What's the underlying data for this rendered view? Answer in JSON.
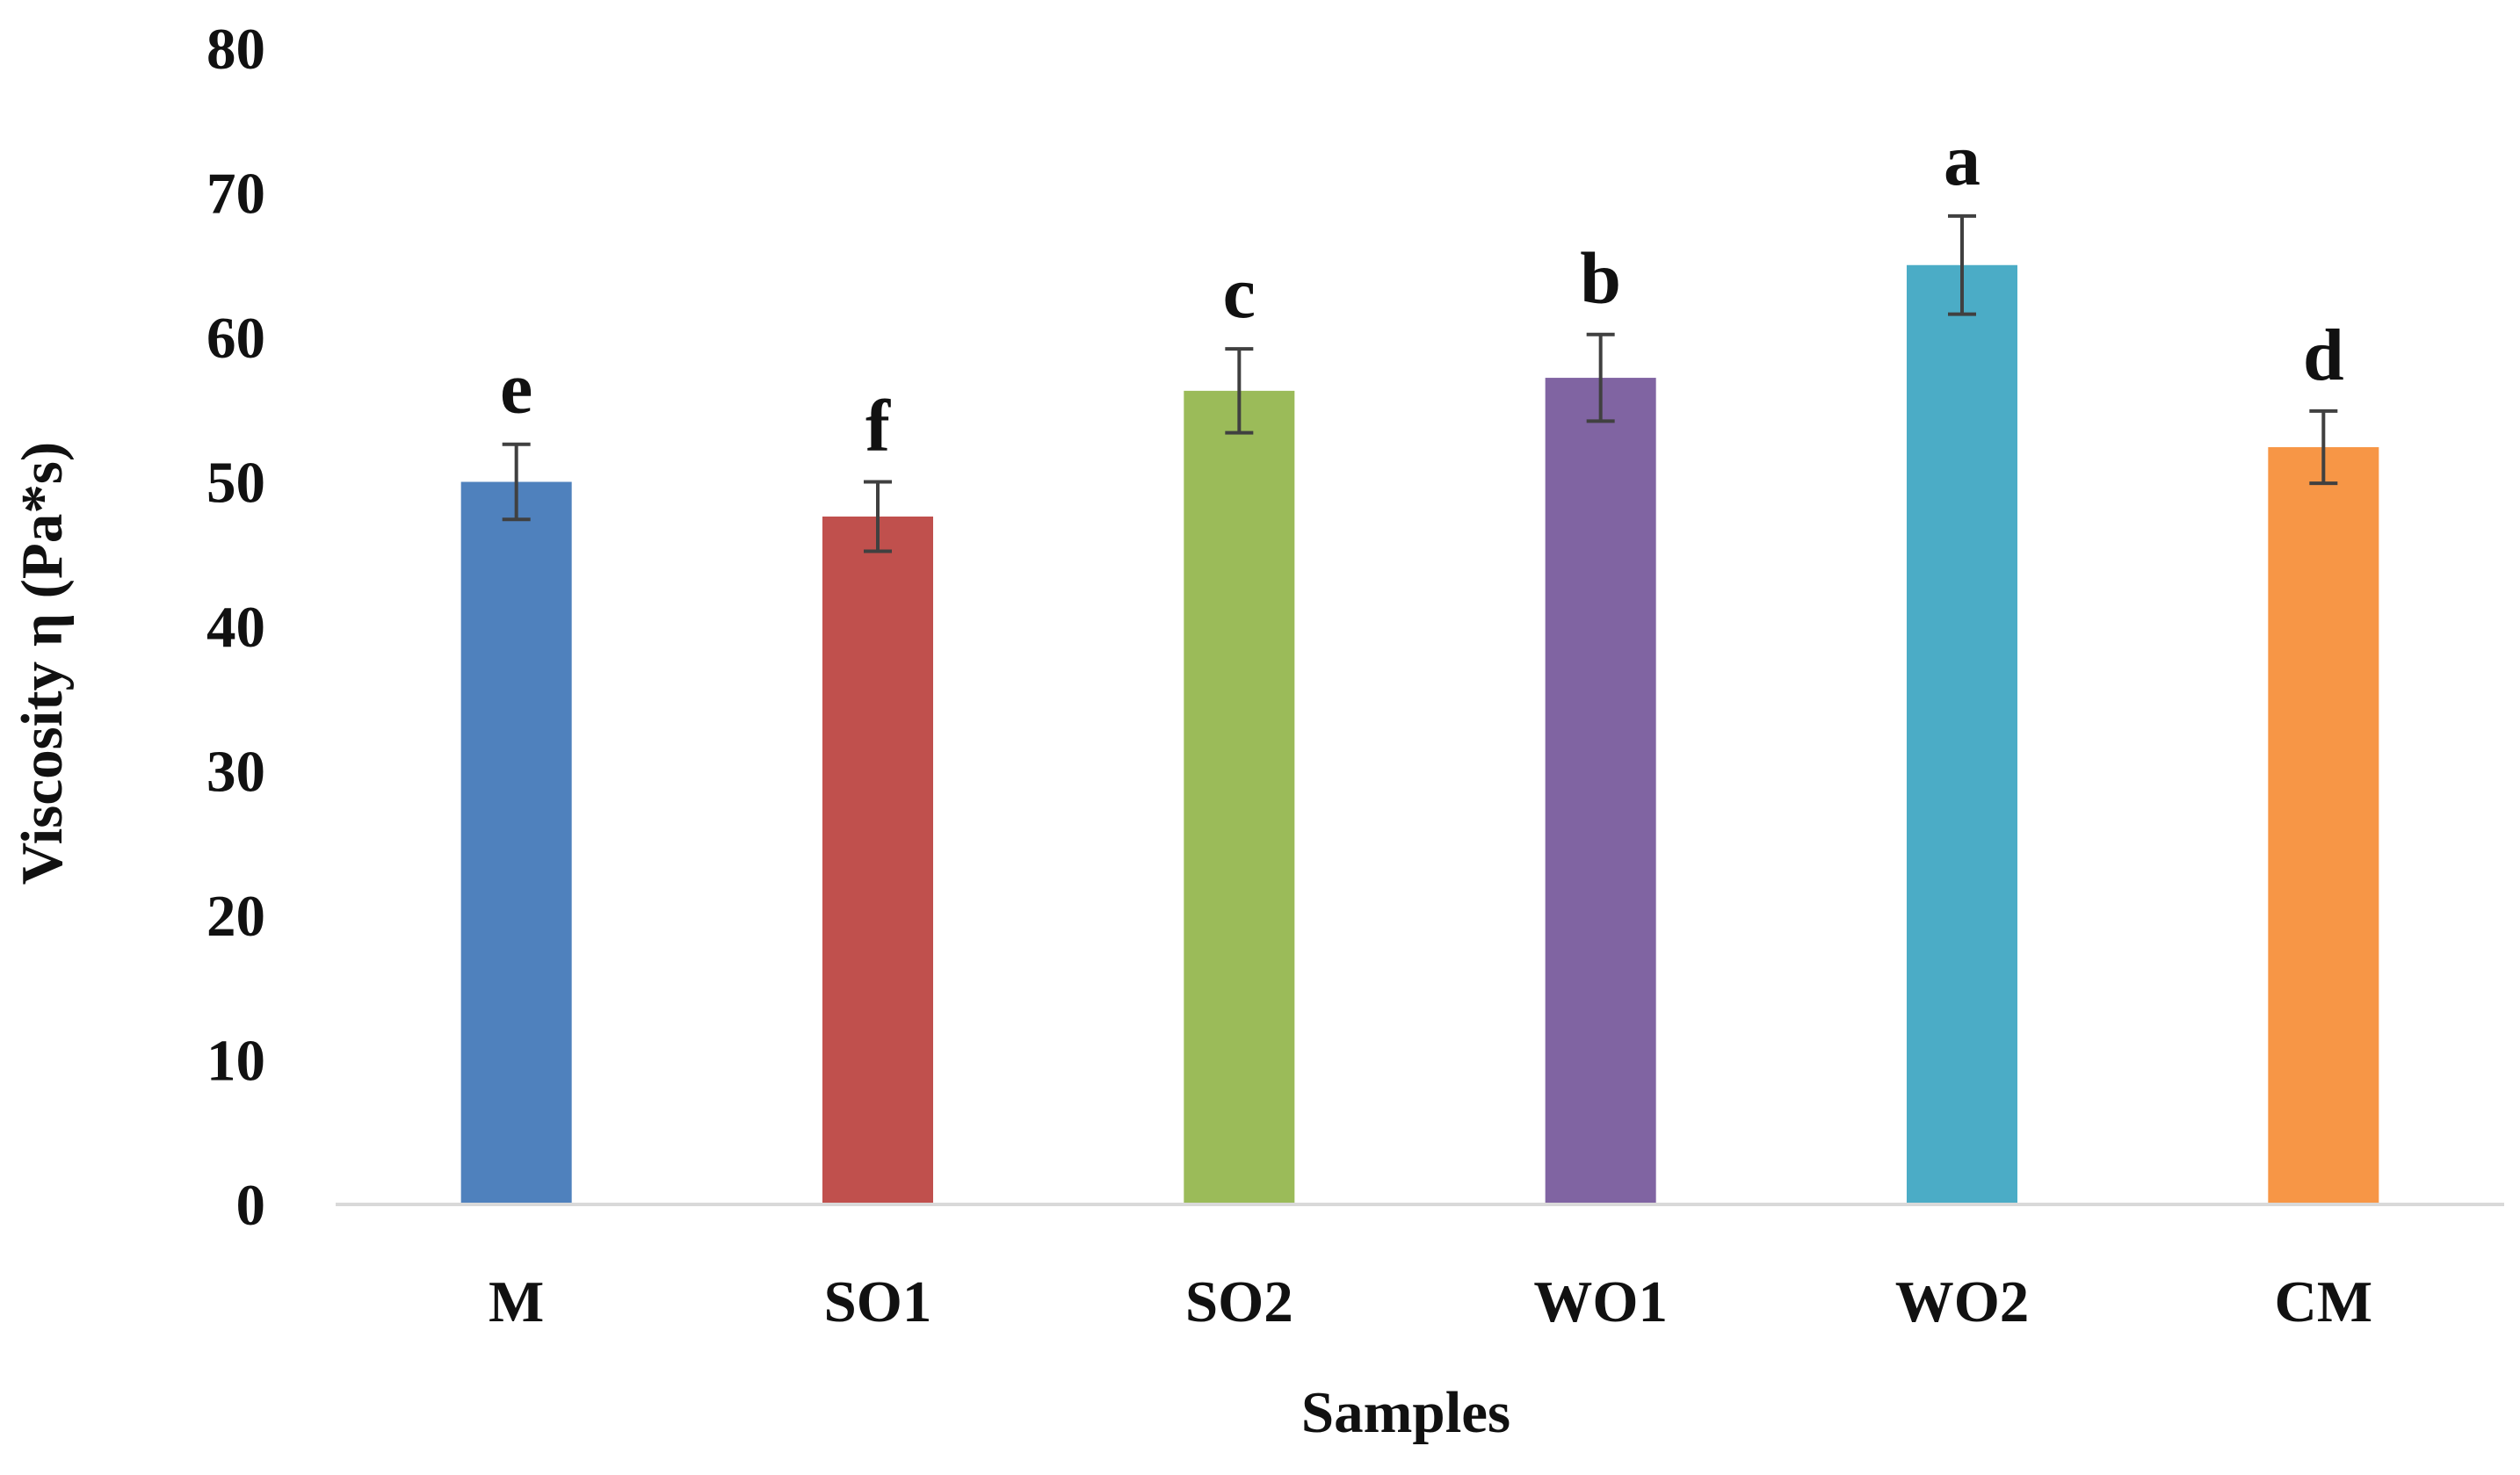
{
  "chart_data": {
    "type": "bar",
    "title": "",
    "xlabel": "Samples",
    "ylabel": "Viscosity η (Pa*s)",
    "ylim": [
      0,
      80
    ],
    "yticks": [
      0,
      10,
      20,
      30,
      40,
      50,
      60,
      70,
      80
    ],
    "grid": false,
    "legend": "none",
    "categories": [
      "M",
      "SO1",
      "SO2",
      "WO1",
      "WO2",
      "CM"
    ],
    "values": [
      50.0,
      47.6,
      56.3,
      57.2,
      65.0,
      52.4
    ],
    "errors": [
      2.6,
      2.4,
      2.9,
      3.0,
      3.4,
      2.5
    ],
    "significance_letters": [
      "e",
      "f",
      "c",
      "b",
      "a",
      "d"
    ],
    "colors": [
      "#4f81bd",
      "#c0504d",
      "#9bbb59",
      "#8064a2",
      "#4bacc6",
      "#f79646"
    ],
    "axis_color": "#d9d9d9",
    "error_bar_color": "#404040"
  }
}
